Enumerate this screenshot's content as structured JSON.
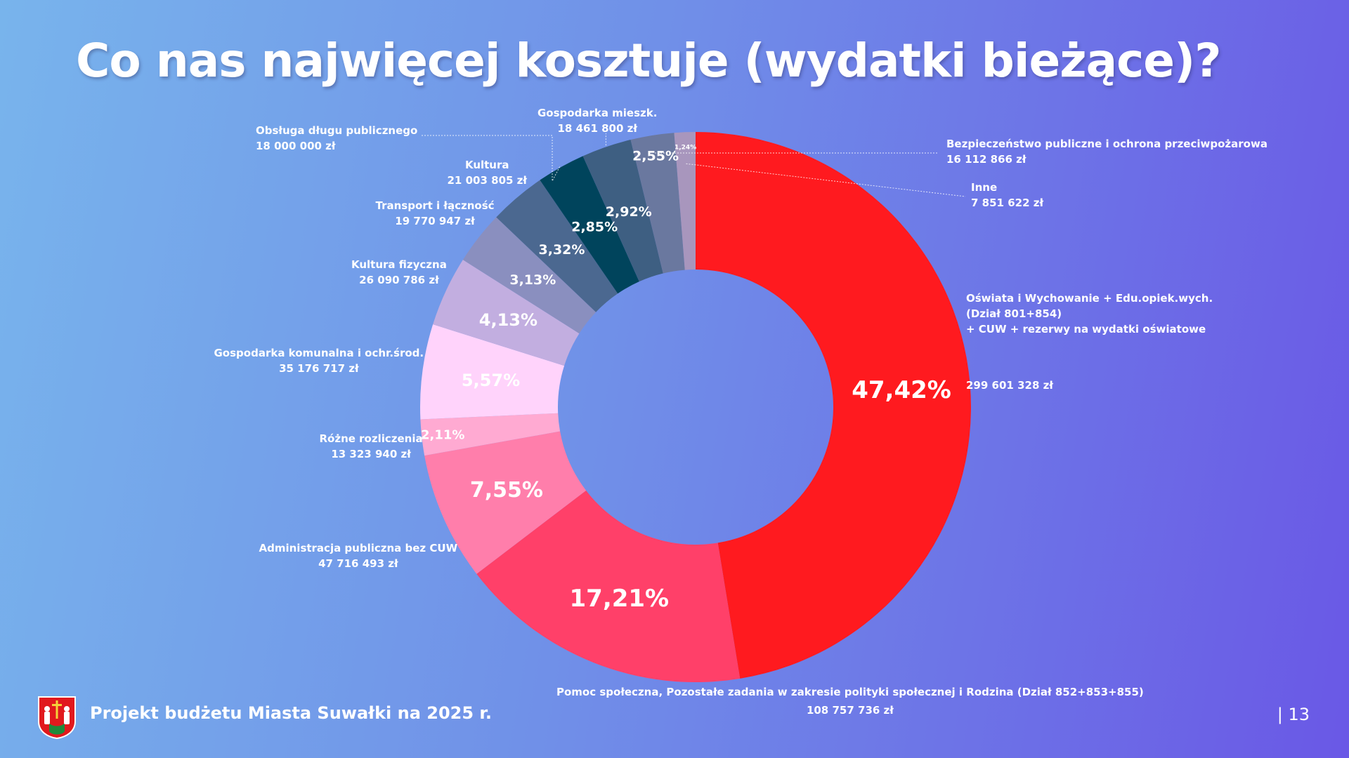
{
  "title": "Co nas najwięcej kosztuje (wydatki bieżące)?",
  "footer": {
    "text": "Projekt budżetu Miasta Suwałki na 2025 r.",
    "page_number": "| 13"
  },
  "chart_data": {
    "type": "donut",
    "title": "Co nas najwięcej kosztuje (wydatki bieżące)?",
    "unit": "zł",
    "slices": [
      {
        "name": "Oświata i Wychowanie + Edu.opiek.wych. (Dział 801+854) + CUW + rezerwy na wydatki oświatowe",
        "name_lines": [
          "Oświata i Wychowanie + Edu.opiek.wych.",
          "(Dział 801+854)",
          "+ CUW + rezerwy na wydatki oświatowe"
        ],
        "amount": "299 601 328 zł",
        "percent": 47.42,
        "percent_label": "47,42%",
        "color": "#ff1a1f"
      },
      {
        "name": "Pomoc społeczna, Pozostałe zadania w zakresie polityki społecznej i Rodzina (Dział 852+853+855)",
        "name_lines": [
          "Pomoc społeczna, Pozostałe zadania w zakresie polityki społecznej i Rodzina (Dział 852+853+855)"
        ],
        "amount": "108 757 736 zł",
        "percent": 17.21,
        "percent_label": "17,21%",
        "color": "#ff4069"
      },
      {
        "name": "Administracja publiczna bez CUW",
        "name_lines": [
          "Administracja publiczna bez CUW"
        ],
        "amount": "47 716 493 zł",
        "percent": 7.55,
        "percent_label": "7,55%",
        "color": "#ff7eab"
      },
      {
        "name": "Różne rozliczenia",
        "name_lines": [
          "Różne rozliczenia"
        ],
        "amount": "13 323 940 zł",
        "percent": 2.11,
        "percent_label": "2,11%",
        "color": "#ffaad2"
      },
      {
        "name": "Gospodarka komunalna i ochr.środ.",
        "name_lines": [
          "Gospodarka komunalna i ochr.środ."
        ],
        "amount": "35 176 717 zł",
        "percent": 5.57,
        "percent_label": "5,57%",
        "color": "#ffd3fb"
      },
      {
        "name": "Kultura fizyczna",
        "name_lines": [
          "Kultura fizyczna"
        ],
        "amount": "26 090 786 zł",
        "percent": 4.13,
        "percent_label": "4,13%",
        "color": "#c2aee0"
      },
      {
        "name": "Transport i łączność",
        "name_lines": [
          "Transport i łączność"
        ],
        "amount": "19 770 947 zł",
        "percent": 3.13,
        "percent_label": "3,13%",
        "color": "#8a8fbf"
      },
      {
        "name": "Kultura",
        "name_lines": [
          "Kultura"
        ],
        "amount": "21 003 805 zł",
        "percent": 3.32,
        "percent_label": "3,32%",
        "color": "#4b6890"
      },
      {
        "name": "Obsługa długu publicznego",
        "name_lines": [
          "Obsługa długu publicznego"
        ],
        "amount": "18 000 000 zł",
        "percent": 2.85,
        "percent_label": "2,85%",
        "color": "#00445c"
      },
      {
        "name": "Gospodarka mieszk.",
        "name_lines": [
          "Gospodarka mieszk."
        ],
        "amount": "18 461 800 zł",
        "percent": 2.92,
        "percent_label": "2,92%",
        "color": "#3e5f82"
      },
      {
        "name": "Bezpieczeństwo publiczne i ochrona przeciwpożarowa",
        "name_lines": [
          "Bezpieczeństwo publiczne i ochrona przeciwpożarowa"
        ],
        "amount": "16 112 866 zł",
        "percent": 2.55,
        "percent_label": "2,55%",
        "color": "#6a789f"
      },
      {
        "name": "Inne",
        "name_lines": [
          "Inne"
        ],
        "amount": "7 851 622 zł",
        "percent": 1.24,
        "percent_label": "1,24%",
        "color": "#a896bd"
      }
    ]
  }
}
